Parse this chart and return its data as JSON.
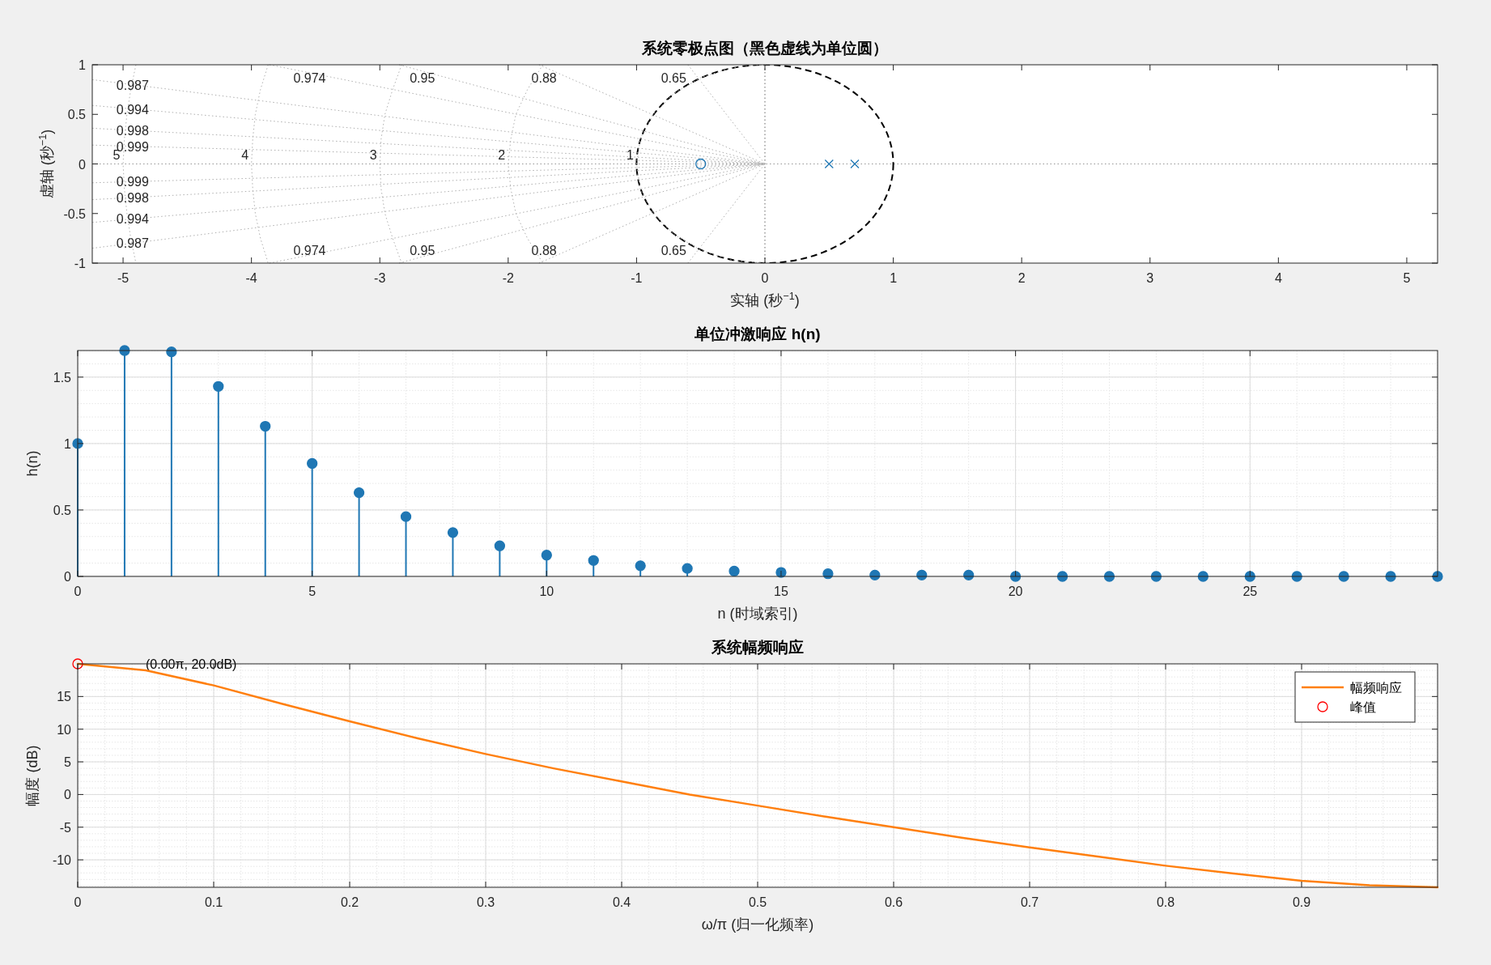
{
  "chart_data": [
    {
      "type": "scatter",
      "title": "系统零极点图（黑色虚线为单位圆）",
      "xlabel": "实轴 (秒$^{−1}$)",
      "ylabel": "虚轴 (秒$^{−1}$)",
      "xlim": [
        -5.24,
        5.24
      ],
      "ylim": [
        -1,
        1
      ],
      "xticks": [
        -5,
        -4,
        -3,
        -2,
        -1,
        0,
        1,
        2,
        3,
        4,
        5
      ],
      "yticks": [
        -1,
        -0.5,
        0,
        0.5,
        1
      ],
      "series": [
        {
          "name": "0.987",
          "type": "line",
          "marker": "none",
          "line_style": "dotted",
          "color": "#b0b0b0",
          "x": [
            -5.24,
            0
          ],
          "values": [
            0.85,
            0
          ]
        },
        {
          "name": "0.987",
          "type": "line",
          "marker": "none",
          "line_style": "dotted",
          "color": "#b0b0b0",
          "x": [
            -5.24,
            0
          ],
          "values": [
            -0.85,
            0
          ]
        },
        {
          "name": "0.974",
          "type": "line",
          "marker": "none",
          "line_style": "dotted",
          "color": "#b0b0b0",
          "x": [
            -3.86,
            0
          ],
          "values": [
            1,
            0
          ]
        },
        {
          "name": "0.974",
          "type": "line",
          "marker": "none",
          "line_style": "dotted",
          "color": "#b0b0b0",
          "x": [
            -3.86,
            0
          ],
          "values": [
            -1,
            0
          ]
        },
        {
          "name": "0.95",
          "type": "line",
          "marker": "none",
          "line_style": "dotted",
          "color": "#b0b0b0",
          "x": [
            -2.85,
            0
          ],
          "values": [
            1,
            0
          ]
        },
        {
          "name": "0.95",
          "type": "line",
          "marker": "none",
          "line_style": "dotted",
          "color": "#b0b0b0",
          "x": [
            -2.85,
            0
          ],
          "values": [
            -1,
            0
          ]
        },
        {
          "name": "0.88",
          "type": "line",
          "marker": "none",
          "line_style": "dotted",
          "color": "#b0b0b0",
          "x": [
            -1.76,
            0
          ],
          "values": [
            1,
            0
          ]
        },
        {
          "name": "0.88",
          "type": "line",
          "marker": "none",
          "line_style": "dotted",
          "color": "#b0b0b0",
          "x": [
            -1.76,
            0
          ],
          "values": [
            -1,
            0
          ]
        },
        {
          "name": "0.65",
          "type": "line",
          "marker": "none",
          "line_style": "dotted",
          "color": "#b0b0b0",
          "x": [
            -0.6,
            0
          ],
          "values": [
            1,
            0
          ]
        },
        {
          "name": "0.65",
          "type": "line",
          "marker": "none",
          "line_style": "dotted",
          "color": "#b0b0b0",
          "x": [
            -0.6,
            0
          ],
          "values": [
            -1,
            0
          ]
        },
        {
          "name": "0.994",
          "type": "line",
          "marker": "none",
          "line_style": "dotted",
          "color": "#b0b0b0",
          "x": [
            -5.24,
            0
          ],
          "values": [
            0.59,
            0
          ]
        },
        {
          "name": "0.994",
          "type": "line",
          "marker": "none",
          "line_style": "dotted",
          "color": "#b0b0b0",
          "x": [
            -5.24,
            0
          ],
          "values": [
            -0.59,
            0
          ]
        },
        {
          "name": "0.998",
          "type": "line",
          "marker": "none",
          "line_style": "dotted",
          "color": "#b0b0b0",
          "x": [
            -5.24,
            0
          ],
          "values": [
            0.36,
            0
          ]
        },
        {
          "name": "0.998",
          "type": "line",
          "marker": "none",
          "line_style": "dotted",
          "color": "#b0b0b0",
          "x": [
            -5.24,
            0
          ],
          "values": [
            -0.36,
            0
          ]
        },
        {
          "name": "0.999",
          "type": "line",
          "marker": "none",
          "line_style": "dotted",
          "color": "#b0b0b0",
          "x": [
            -5.24,
            0
          ],
          "values": [
            0.19,
            0
          ]
        },
        {
          "name": "0.999",
          "type": "line",
          "marker": "none",
          "line_style": "dotted",
          "color": "#b0b0b0",
          "x": [
            -5.24,
            0
          ],
          "values": [
            -0.19,
            0
          ]
        },
        {
          "name": "5",
          "type": "line",
          "marker": "none",
          "line_style": "dotted",
          "color": "#b0b0b0",
          "x": [
            -4.9,
            -4.94,
            -4.97,
            -4.99,
            -5,
            -4.99,
            -4.97,
            -4.94,
            -4.9
          ],
          "values": [
            1,
            0.75,
            0.5,
            0.25,
            0,
            -0.25,
            -0.5,
            -0.75,
            -1
          ]
        },
        {
          "name": "4",
          "type": "line",
          "marker": "none",
          "line_style": "dotted",
          "color": "#b0b0b0",
          "x": [
            -3.87,
            -3.93,
            -3.97,
            -3.99,
            -4,
            -3.99,
            -3.97,
            -3.93,
            -3.87
          ],
          "values": [
            1,
            0.75,
            0.5,
            0.25,
            0,
            -0.25,
            -0.5,
            -0.75,
            -1
          ]
        },
        {
          "name": "3",
          "type": "line",
          "marker": "none",
          "line_style": "dotted",
          "color": "#b0b0b0",
          "x": [
            -2.83,
            -2.9,
            -2.96,
            -2.99,
            -3,
            -2.99,
            -2.96,
            -2.9,
            -2.83
          ],
          "values": [
            1,
            0.75,
            0.5,
            0.25,
            0,
            -0.25,
            -0.5,
            -0.75,
            -1
          ]
        },
        {
          "name": "2",
          "type": "line",
          "marker": "none",
          "line_style": "dotted",
          "color": "#b0b0b0",
          "x": [
            -1.73,
            -1.85,
            -1.94,
            -1.98,
            -2,
            -1.98,
            -1.94,
            -1.85,
            -1.73
          ],
          "values": [
            1,
            0.75,
            0.5,
            0.25,
            0,
            -0.25,
            -0.5,
            -0.75,
            -1
          ]
        },
        {
          "name": "1",
          "type": "line",
          "marker": "none",
          "line_style": "dotted",
          "color": "#b0b0b0",
          "x": [
            0,
            -0.26,
            -0.5,
            -0.71,
            -0.87,
            -0.97,
            -1,
            -0.97,
            -0.87,
            -0.71,
            -0.5,
            -0.26,
            0
          ],
          "values": [
            1,
            0.97,
            0.87,
            0.71,
            0.5,
            0.26,
            0,
            -0.26,
            -0.5,
            -0.71,
            -0.87,
            -0.97,
            -1
          ]
        },
        {
          "type": "scatter",
          "marker": "circle",
          "color": "#1f77b4",
          "x": [
            -0.5
          ],
          "values": [
            0
          ]
        },
        {
          "type": "scatter",
          "marker": "cross",
          "color": "#1f77b4",
          "x": [
            0.5,
            0.7
          ],
          "values": [
            0,
            0
          ]
        }
      ],
      "ref_lines": [
        {
          "axis": "x",
          "value": 0,
          "color": "#808080",
          "line_style": "dotted"
        },
        {
          "axis": "y",
          "value": 0,
          "color": "#969696",
          "line_style": "dotted"
        }
      ]
    },
    {
      "type": "lollipop",
      "title": "单位冲激响应 h(n)",
      "xlabel": "n (时域索引)",
      "ylabel": "h(n)",
      "color": "#1f77b4",
      "marker": "circle",
      "grid": true,
      "x": [
        0,
        1,
        2,
        3,
        4,
        5,
        6,
        7,
        8,
        9,
        10,
        11,
        12,
        13,
        14,
        15,
        16,
        17,
        18,
        19,
        20,
        21,
        22,
        23,
        24,
        25,
        26,
        27,
        28,
        29
      ],
      "values": [
        1,
        1.7,
        1.69,
        1.43,
        1.13,
        0.85,
        0.63,
        0.45,
        0.33,
        0.23,
        0.16,
        0.12,
        0.08,
        0.06,
        0.04,
        0.03,
        0.02,
        0.01,
        0.01,
        0.01,
        0,
        0,
        0,
        0,
        0,
        0,
        0,
        0,
        0,
        0
      ],
      "xlim": [
        0,
        29
      ],
      "ylim": [
        0,
        1.7
      ],
      "xticks": [
        0,
        5,
        10,
        15,
        20,
        25
      ],
      "yticks": [
        0,
        0.5,
        1,
        1.5
      ]
    },
    {
      "type": "line",
      "title": "系统幅频响应",
      "xlabel": "ω/π (归一化频率)",
      "ylabel": "幅度 (dB)",
      "grid": true,
      "legend": "top right",
      "xlim": [
        0,
        1
      ],
      "ylim": [
        -14.2,
        20
      ],
      "xticks": [
        0,
        0.1,
        0.2,
        0.3,
        0.4,
        0.5,
        0.6,
        0.7,
        0.8,
        0.9
      ],
      "yticks": [
        -10,
        -5,
        0,
        5,
        10,
        15
      ],
      "series": [
        {
          "name": "幅频响应",
          "type": "line",
          "marker": "none",
          "color": "#ff7f0e",
          "x": [
            0,
            0.05,
            0.1,
            0.15,
            0.2,
            0.25,
            0.3,
            0.35,
            0.4,
            0.45,
            0.5,
            0.55,
            0.6,
            0.65,
            0.7,
            0.75,
            0.8,
            0.85,
            0.9,
            0.95,
            1
          ],
          "values": [
            20,
            19,
            16.7,
            13.9,
            11.2,
            8.6,
            6.2,
            4,
            2,
            0,
            -1.7,
            -3.4,
            -5,
            -6.6,
            -8.1,
            -9.5,
            -10.9,
            -12.1,
            -13.2,
            -13.9,
            -14.2
          ]
        },
        {
          "name": "峰值",
          "type": "scatter",
          "marker": "circle",
          "color": "#ff0000",
          "x": [
            0
          ],
          "values": [
            20
          ]
        }
      ],
      "annotations": [
        "(0.00π, 20.0dB)"
      ]
    }
  ]
}
